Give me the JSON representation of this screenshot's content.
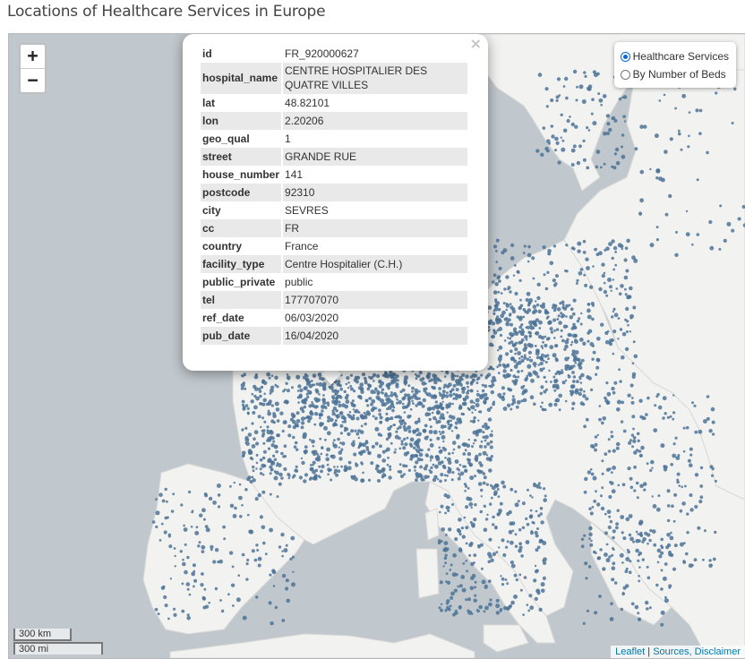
{
  "page": {
    "title": "Locations of Healthcare Services in Europe"
  },
  "map": {
    "zoom_in_label": "+",
    "zoom_out_label": "−",
    "layers": [
      {
        "label": "Healthcare Services",
        "selected": true
      },
      {
        "label": "By Number of Beds",
        "selected": false
      }
    ],
    "marker_color": "#4c7396",
    "scale": {
      "km": "300 km",
      "mi": "300 mi"
    },
    "attribution": {
      "leaflet": "Leaflet",
      "separator": " | ",
      "sources": "Sources, Disclaimer"
    },
    "popup": {
      "close_label": "×",
      "rows": [
        {
          "key": "id",
          "value": "FR_920000627"
        },
        {
          "key": "hospital_name",
          "value": "CENTRE HOSPITALIER DES QUATRE VILLES"
        },
        {
          "key": "lat",
          "value": "48.82101"
        },
        {
          "key": "lon",
          "value": "2.20206"
        },
        {
          "key": "geo_qual",
          "value": "1"
        },
        {
          "key": "street",
          "value": "GRANDE RUE"
        },
        {
          "key": "house_number",
          "value": "141"
        },
        {
          "key": "postcode",
          "value": "92310"
        },
        {
          "key": "city",
          "value": "SEVRES"
        },
        {
          "key": "cc",
          "value": "FR"
        },
        {
          "key": "country",
          "value": "France"
        },
        {
          "key": "facility_type",
          "value": "Centre Hospitalier (C.H.)"
        },
        {
          "key": "public_private",
          "value": "public"
        },
        {
          "key": "tel",
          "value": "177707070"
        },
        {
          "key": "ref_date",
          "value": "06/03/2020"
        },
        {
          "key": "pub_date",
          "value": "16/04/2020"
        }
      ]
    }
  }
}
